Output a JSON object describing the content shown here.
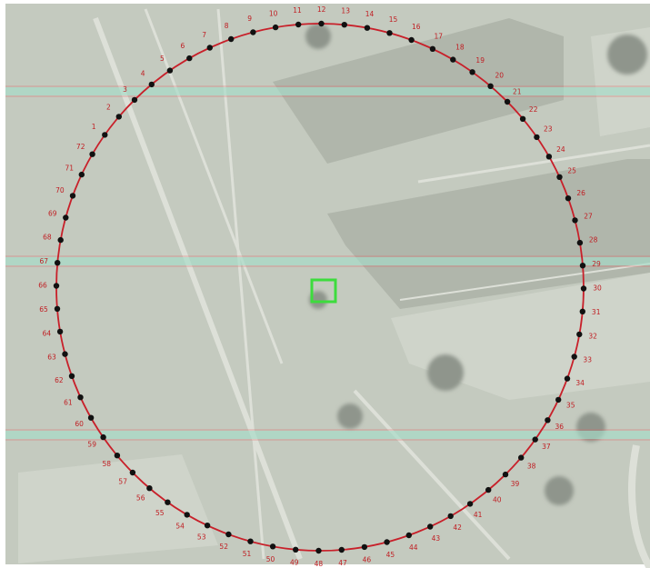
{
  "map": {
    "colors": {
      "background": "#c4cabf",
      "field_dark": "#b0b6ab",
      "field_light": "#cfd4ca",
      "road": "#dde0d8",
      "tree": "#8f958c",
      "circle_stroke": "#c8202a",
      "point_fill": "#111111",
      "label_color": "#c01d22",
      "band_fill": "#a6dcc8",
      "band_red": "#e06060",
      "center_marker": "#3ddc3d"
    },
    "circle": {
      "point_count": 72,
      "labels": [
        "1",
        "2",
        "3",
        "4",
        "5",
        "6",
        "7",
        "8",
        "9",
        "10",
        "11",
        "12",
        "13",
        "14",
        "15",
        "16",
        "17",
        "18",
        "19",
        "20",
        "21",
        "22",
        "23",
        "24",
        "25",
        "26",
        "27",
        "28",
        "29",
        "30",
        "31",
        "32",
        "33",
        "34",
        "35",
        "36",
        "37",
        "38",
        "39",
        "40",
        "41",
        "42",
        "43",
        "44",
        "45",
        "46",
        "47",
        "48",
        "49",
        "50",
        "51",
        "52",
        "53",
        "54",
        "55",
        "56",
        "57",
        "58",
        "59",
        "60",
        "61",
        "62",
        "63",
        "64",
        "65",
        "66",
        "67",
        "68",
        "69",
        "70",
        "71",
        "72"
      ]
    },
    "bands": [
      "upper-band",
      "middle-band",
      "lower-band"
    ],
    "center_marker": {
      "shape": "square"
    }
  }
}
